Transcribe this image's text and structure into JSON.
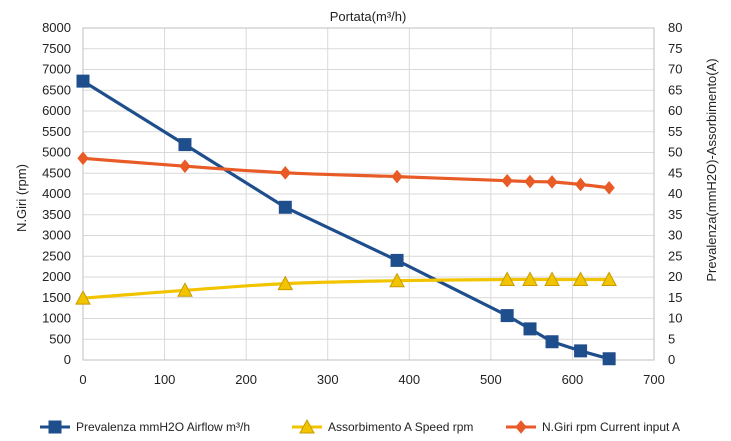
{
  "chart_data": {
    "type": "line",
    "title": "Portata(m³/h)",
    "xlabel": "",
    "ylabel_left": "N.Giri (rpm)",
    "ylabel_right": "Prevalenza(mmH2O)-Assorbimento(A)",
    "xlim": [
      0,
      700
    ],
    "x_ticks": [
      0,
      100,
      200,
      300,
      400,
      500,
      600,
      700
    ],
    "ylim_left": [
      0,
      8000
    ],
    "y_ticks_left": [
      0,
      500,
      1000,
      1500,
      2000,
      2500,
      3000,
      3500,
      4000,
      4500,
      5000,
      5500,
      6000,
      6500,
      7000,
      7500,
      8000
    ],
    "ylim_right": [
      0,
      80
    ],
    "y_ticks_right": [
      0,
      5,
      10,
      15,
      20,
      25,
      30,
      35,
      40,
      45,
      50,
      55,
      60,
      65,
      70,
      75,
      80
    ],
    "grid": true,
    "legend_position": "bottom",
    "series": [
      {
        "name": "Prevalenza mmH2O Airflow m³/h",
        "axis": "left",
        "color": "#1f4e8c",
        "marker": "square",
        "x": [
          0,
          125,
          248,
          385,
          520,
          548,
          575,
          610,
          645
        ],
        "values": [
          6720,
          5190,
          3680,
          2400,
          1070,
          750,
          440,
          220,
          30
        ]
      },
      {
        "name": "Assorbimento A  Speed rpm",
        "axis": "left",
        "color": "#f2c400",
        "marker": "triangle",
        "x": [
          0,
          125,
          248,
          385,
          520,
          548,
          575,
          610,
          645
        ],
        "values": [
          1490,
          1680,
          1840,
          1910,
          1940,
          1940,
          1940,
          1940,
          1940
        ]
      },
      {
        "name": "N.Giri rpm Current input A",
        "axis": "left",
        "color": "#e85a26",
        "marker": "diamond",
        "x": [
          0,
          125,
          248,
          385,
          520,
          548,
          575,
          610,
          645
        ],
        "values": [
          4860,
          4670,
          4510,
          4420,
          4320,
          4300,
          4290,
          4230,
          4150
        ]
      }
    ]
  }
}
